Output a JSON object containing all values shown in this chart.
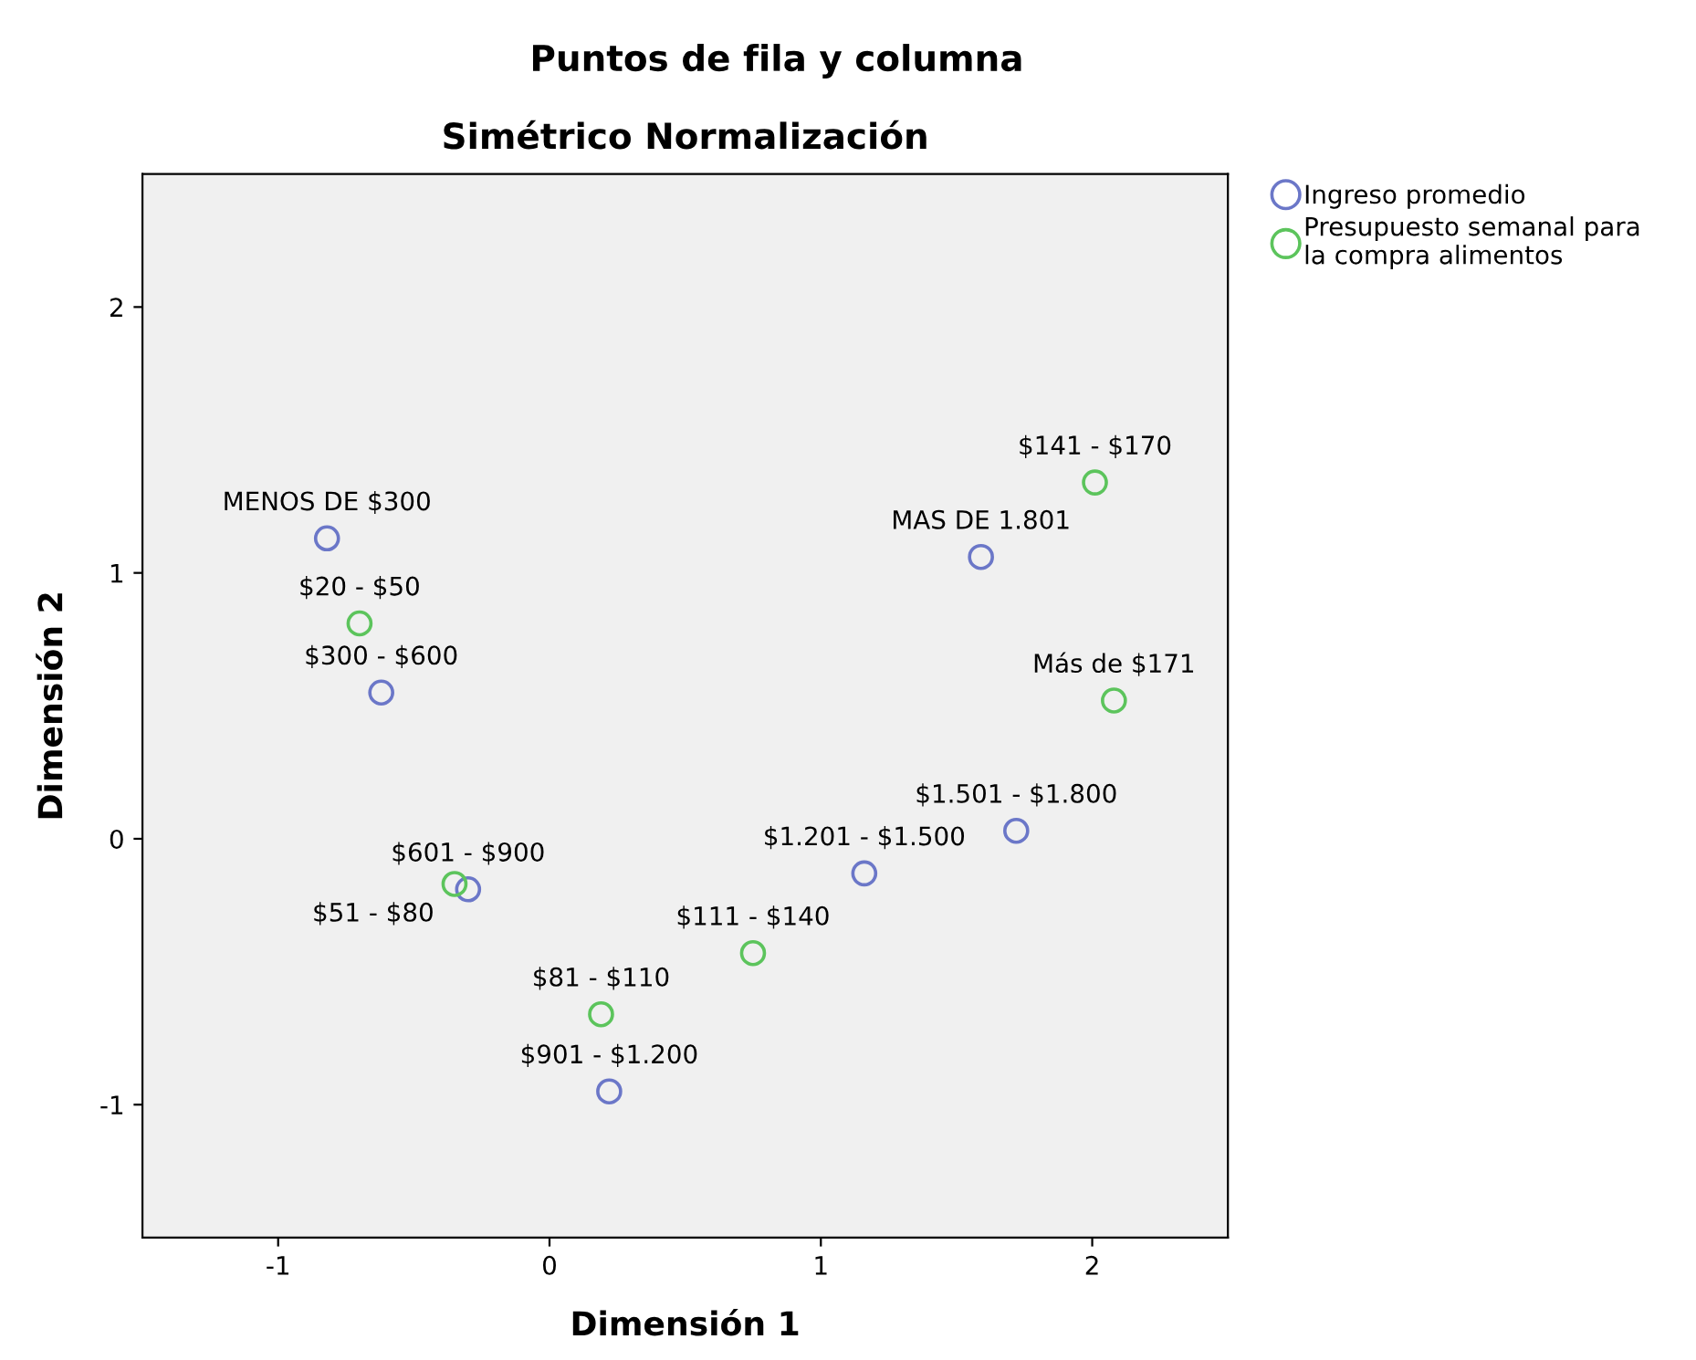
{
  "chart_data": {
    "type": "scatter",
    "title": "Puntos de fila y columna",
    "subtitle": "Simétrico Normalización",
    "xlabel": "Dimensión 1",
    "ylabel": "Dimensión 2",
    "xlim": [
      -1.5,
      2.5
    ],
    "ylim": [
      -1.5,
      2.5
    ],
    "xticks": [
      -1,
      0,
      1,
      2
    ],
    "yticks": [
      -1,
      0,
      1,
      2
    ],
    "grid": false,
    "legend": "top right",
    "marker": "circle",
    "series": [
      {
        "name": "Ingreso promedio",
        "color": "#6b77c8",
        "x": [
          -0.82,
          -0.62,
          -0.3,
          0.22,
          1.16,
          1.72,
          1.59
        ],
        "values": [
          1.13,
          0.55,
          -0.19,
          -0.95,
          -0.13,
          0.03,
          1.06
        ],
        "value_labels": [
          "MENOS DE $300",
          "$300 - $600",
          "$601 - $900",
          "$901 - $1.200",
          "$1.201 - $1.500",
          "$1.501 - $1.800",
          "MAS DE 1.801"
        ]
      },
      {
        "name": "Presupuesto semanal para\nla compra alimentos",
        "color": "#5cc45c",
        "x": [
          -0.7,
          -0.35,
          0.19,
          0.75,
          2.01,
          2.08
        ],
        "values": [
          0.81,
          -0.17,
          -0.66,
          -0.43,
          1.34,
          0.52
        ],
        "value_labels": [
          "$20 - $50",
          "$51 - $80",
          "$81 - $110",
          "$111 - $140",
          "$141 - $170",
          "Más de $171"
        ]
      }
    ]
  }
}
